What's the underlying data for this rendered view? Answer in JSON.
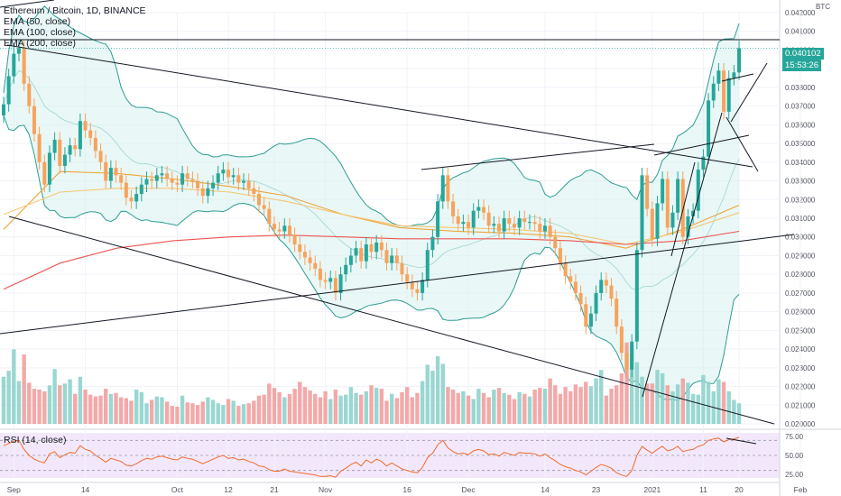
{
  "title": "Ethereum / Bitcoin, 1D, BINANCE",
  "legend": [
    "EMA (50, close)",
    "EMA (100, close)",
    "EMA (200, close)"
  ],
  "rsi_label": "RSI (14, close)",
  "price_unit": "BTC",
  "last_price": "0.040102",
  "countdown": "15:53:26",
  "colors": {
    "up": "#26a69a",
    "down": "#f7a35c",
    "ema50": "#f0a336",
    "ema100": "#f7c675",
    "ema200": "#ef5350",
    "bollinger": "#2e9d93",
    "rsi": "#f06b2a",
    "price_tag": "#26a69a"
  },
  "chart_data": [
    {
      "type": "candlestick",
      "title": "Ethereum / Bitcoin, 1D, BINANCE",
      "xlabel": "",
      "ylabel": "",
      "x_ticks": [
        "Sep",
        "14",
        "Oct",
        "12",
        "21",
        "Nov",
        "16",
        "Dec",
        "14",
        "23",
        "2021",
        "11",
        "20",
        "Feb"
      ],
      "y_ticks": [
        "0.042000",
        "0.041000",
        "0.040000",
        "0.039000",
        "0.038000",
        "0.037000",
        "0.036000",
        "0.035000",
        "0.034000",
        "0.033000",
        "0.032000",
        "0.031000",
        "0.030000",
        "0.029000",
        "0.028000",
        "0.027000",
        "0.026000",
        "0.025000",
        "0.024000",
        "0.023000",
        "0.022000",
        "0.021000",
        "0.020000"
      ],
      "ylim": [
        0.02,
        0.042
      ],
      "series": [
        {
          "kind": "close",
          "values": [
            0.0371,
            0.0386,
            0.0398,
            0.0401,
            0.0382,
            0.037,
            0.0355,
            0.034,
            0.0328,
            0.0345,
            0.0352,
            0.0338,
            0.0344,
            0.0349,
            0.0347,
            0.0362,
            0.0357,
            0.0353,
            0.0346,
            0.034,
            0.033,
            0.0337,
            0.0333,
            0.0329,
            0.0321,
            0.0319,
            0.0323,
            0.0328,
            0.0331,
            0.033,
            0.0333,
            0.0334,
            0.0331,
            0.0329,
            0.0328,
            0.0334,
            0.0331,
            0.033,
            0.0326,
            0.0322,
            0.0326,
            0.0329,
            0.0334,
            0.0336,
            0.0332,
            0.0333,
            0.0329,
            0.033,
            0.0326,
            0.0323,
            0.0317,
            0.0315,
            0.0307,
            0.0304,
            0.0303,
            0.0306,
            0.0301,
            0.0296,
            0.0292,
            0.0289,
            0.0286,
            0.0283,
            0.0277,
            0.0276,
            0.0278,
            0.027,
            0.028,
            0.0285,
            0.029,
            0.0294,
            0.0287,
            0.0296,
            0.0292,
            0.0297,
            0.0293,
            0.0286,
            0.029,
            0.0286,
            0.028,
            0.0276,
            0.0272,
            0.027,
            0.0277,
            0.0293,
            0.03,
            0.0319,
            0.0333,
            0.0319,
            0.0311,
            0.0307,
            0.0308,
            0.0305,
            0.0314,
            0.0316,
            0.0313,
            0.0306,
            0.0307,
            0.0303,
            0.031,
            0.0307,
            0.0305,
            0.031,
            0.0308,
            0.0308,
            0.0307,
            0.0303,
            0.0306,
            0.03,
            0.0294,
            0.0286,
            0.0279,
            0.0276,
            0.027,
            0.0264,
            0.0252,
            0.0259,
            0.027,
            0.0277,
            0.0274,
            0.0267,
            0.0252,
            0.0238,
            0.0229,
            0.0244,
            0.0293,
            0.0333,
            0.0315,
            0.0299,
            0.0318,
            0.0331,
            0.0305,
            0.0313,
            0.0331,
            0.03,
            0.0311,
            0.0314,
            0.0336,
            0.0343,
            0.0373,
            0.0382,
            0.0389,
            0.0367,
            0.0385,
            0.0388,
            0.0401
          ]
        },
        {
          "name": "EMA (50, close)",
          "values": [
            0.0304,
            0.0335,
            0.0334,
            0.0331,
            0.0327,
            0.0322,
            0.0312,
            0.0305,
            0.0303,
            0.0302,
            0.03,
            0.0294,
            0.0304,
            0.0317
          ]
        },
        {
          "name": "EMA (100, close)",
          "values": [
            0.0312,
            0.0324,
            0.0326,
            0.0326,
            0.0324,
            0.0319,
            0.0312,
            0.0306,
            0.0305,
            0.0304,
            0.0302,
            0.0296,
            0.0303,
            0.0313
          ]
        },
        {
          "name": "EMA (200, close)",
          "values": [
            0.0272,
            0.0286,
            0.0294,
            0.0298,
            0.03,
            0.0301,
            0.03,
            0.0299,
            0.0299,
            0.0299,
            0.0298,
            0.0296,
            0.0298,
            0.0303
          ]
        }
      ]
    },
    {
      "type": "bar",
      "title": "Volume",
      "xlabel": "",
      "ylabel": "",
      "values": [
        0.55,
        0.62,
        0.87,
        0.5,
        0.81,
        0.48,
        0.41,
        0.4,
        0.38,
        0.45,
        0.64,
        0.45,
        0.47,
        0.52,
        0.35,
        0.55,
        0.4,
        0.34,
        0.32,
        0.33,
        0.41,
        0.35,
        0.36,
        0.31,
        0.3,
        0.27,
        0.4,
        0.37,
        0.24,
        0.28,
        0.32,
        0.31,
        0.26,
        0.21,
        0.2,
        0.33,
        0.25,
        0.24,
        0.22,
        0.26,
        0.31,
        0.28,
        0.24,
        0.22,
        0.29,
        0.27,
        0.21,
        0.23,
        0.24,
        0.27,
        0.33,
        0.34,
        0.47,
        0.42,
        0.37,
        0.31,
        0.35,
        0.41,
        0.49,
        0.43,
        0.39,
        0.35,
        0.31,
        0.38,
        0.29,
        0.4,
        0.33,
        0.34,
        0.43,
        0.36,
        0.34,
        0.38,
        0.45,
        0.42,
        0.41,
        0.27,
        0.35,
        0.3,
        0.37,
        0.43,
        0.31,
        0.36,
        0.5,
        0.69,
        0.62,
        0.79,
        0.7,
        0.43,
        0.4,
        0.36,
        0.38,
        0.33,
        0.29,
        0.41,
        0.36,
        0.31,
        0.4,
        0.42,
        0.36,
        0.34,
        0.29,
        0.37,
        0.35,
        0.32,
        0.4,
        0.42,
        0.41,
        0.53,
        0.45,
        0.35,
        0.43,
        0.38,
        0.46,
        0.43,
        0.49,
        0.44,
        0.53,
        0.63,
        0.33,
        0.41,
        0.45,
        0.59,
        0.95,
        0.91,
        0.72,
        0.55,
        0.47,
        0.47,
        0.63,
        0.59,
        0.45,
        0.38,
        0.46,
        0.53,
        0.48,
        0.35,
        0.34,
        0.57,
        0.49,
        0.38,
        0.52,
        0.49,
        0.38,
        0.28,
        0.24
      ]
    },
    {
      "type": "line",
      "title": "RSI (14, close)",
      "xlabel": "",
      "ylabel": "",
      "ylim": [
        20,
        80
      ],
      "y_ticks": [
        "75.00",
        "50.00",
        "25.00"
      ],
      "values": [
        63,
        66,
        69,
        70,
        58,
        50,
        45,
        42,
        40,
        52,
        55,
        47,
        51,
        54,
        53,
        63,
        58,
        56,
        50,
        46,
        41,
        46,
        44,
        42,
        37,
        36,
        39,
        43,
        46,
        45,
        48,
        49,
        47,
        45,
        44,
        48,
        46,
        45,
        42,
        39,
        42,
        45,
        48,
        50,
        46,
        47,
        44,
        45,
        42,
        40,
        36,
        35,
        31,
        29,
        29,
        32,
        29,
        28,
        27,
        26,
        25,
        24,
        22,
        22,
        23,
        21,
        29,
        33,
        38,
        41,
        36,
        44,
        40,
        45,
        42,
        36,
        40,
        36,
        32,
        30,
        28,
        27,
        34,
        47,
        53,
        64,
        70,
        60,
        55,
        52,
        53,
        51,
        56,
        58,
        56,
        51,
        52,
        49,
        54,
        52,
        50,
        54,
        53,
        53,
        52,
        49,
        52,
        47,
        43,
        38,
        35,
        33,
        30,
        28,
        24,
        29,
        34,
        38,
        36,
        33,
        27,
        24,
        22,
        30,
        50,
        62,
        57,
        53,
        58,
        62,
        56,
        58,
        62,
        55,
        57,
        58,
        62,
        64,
        70,
        72,
        73,
        68,
        71,
        72,
        74
      ]
    }
  ]
}
